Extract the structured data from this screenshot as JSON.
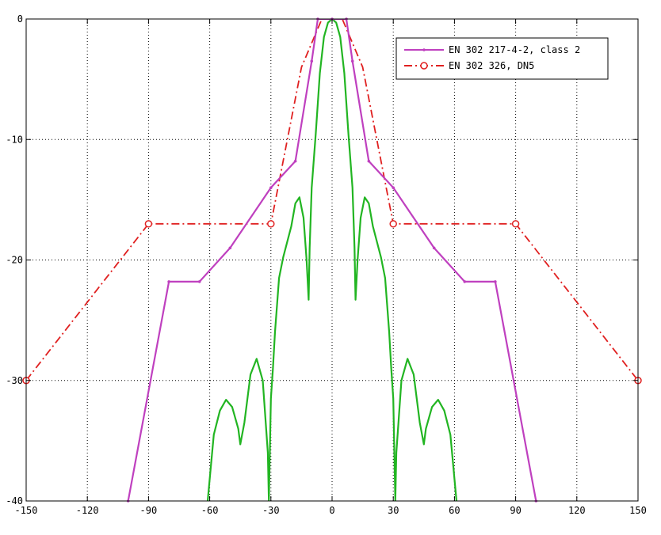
{
  "chart_data": {
    "type": "line",
    "title": "",
    "xlabel": "",
    "ylabel": "",
    "xlim": [
      -150,
      150
    ],
    "ylim": [
      -40,
      0
    ],
    "grid": true,
    "legend_position": "top-right",
    "x_ticks": [
      -150,
      -120,
      -90,
      -60,
      -30,
      0,
      30,
      60,
      90,
      120,
      150
    ],
    "x_tick_labels": [
      "-150",
      "-120",
      "-90",
      "-60",
      "-30",
      "0",
      "30",
      "60",
      "90",
      "120",
      "150"
    ],
    "y_ticks": [
      0,
      -10,
      -20,
      -30,
      -40
    ],
    "y_tick_labels": [
      "0",
      "-10",
      "-20",
      "-30",
      "-40"
    ],
    "series": [
      {
        "name": "EN 302 217-4-2, class 2",
        "color": "#bf40bf",
        "style": "solid",
        "marker": "dot",
        "x": [
          -100,
          -80,
          -65,
          -50,
          -30,
          -18,
          -10,
          -7,
          0,
          7,
          10,
          18,
          30,
          50,
          65,
          80,
          100
        ],
        "y": [
          -40,
          -21.8,
          -21.8,
          -19,
          -14,
          -11.8,
          -3.5,
          0,
          0,
          0,
          -3.5,
          -11.8,
          -14,
          -19,
          -21.8,
          -21.8,
          -40
        ]
      },
      {
        "name": "EN 302 326, DN5",
        "color": "#e02020",
        "style": "dashdot",
        "marker": "circle",
        "x": [
          -150,
          -90,
          -30,
          -15,
          -5,
          5,
          15,
          30,
          90,
          150
        ],
        "y": [
          -30,
          -17,
          -17,
          -4,
          0,
          0,
          -4,
          -17,
          -17,
          -30
        ],
        "marker_x": [
          -150,
          -90,
          -30,
          30,
          90,
          150
        ],
        "marker_y": [
          -30,
          -17,
          -17,
          -17,
          -17,
          -30
        ]
      },
      {
        "color": "#22b522",
        "style": "solid",
        "marker": "none",
        "x": [
          -61,
          -58,
          -55,
          -52,
          -49,
          -46,
          -45,
          -43,
          -40,
          -37,
          -34,
          -31.5,
          -31,
          -30,
          -29,
          -28,
          -26,
          -24,
          -22,
          -20,
          -18,
          -16,
          -14,
          -12.5,
          -11.5,
          -11,
          -10,
          -8,
          -6,
          -4,
          -2,
          0,
          2,
          4,
          6,
          8,
          10,
          11,
          11.5,
          12.5,
          14,
          16,
          18,
          20,
          22,
          24,
          26,
          28,
          29,
          30,
          31,
          31.5,
          34,
          37,
          40,
          43,
          45,
          46,
          49,
          52,
          55,
          58,
          61
        ],
        "y": [
          -40,
          -34.5,
          -32.5,
          -31.6,
          -32.2,
          -34,
          -35.3,
          -33.5,
          -29.5,
          -28.2,
          -30,
          -36,
          -40,
          -31.5,
          -29,
          -26,
          -21.5,
          -19.8,
          -18.5,
          -17.2,
          -15.3,
          -14.8,
          -16.5,
          -20,
          -23.3,
          -19,
          -14,
          -9.5,
          -4.5,
          -1.5,
          -0.3,
          0,
          -0.3,
          -1.5,
          -4.5,
          -9.5,
          -14,
          -19,
          -23.3,
          -20,
          -16.5,
          -14.8,
          -15.3,
          -17.2,
          -18.5,
          -19.8,
          -21.5,
          -26,
          -29,
          -31.5,
          -40,
          -36,
          -30,
          -28.2,
          -29.5,
          -33.5,
          -35.3,
          -34,
          -32.2,
          -31.6,
          -32.5,
          -34.5,
          -40
        ]
      }
    ]
  }
}
